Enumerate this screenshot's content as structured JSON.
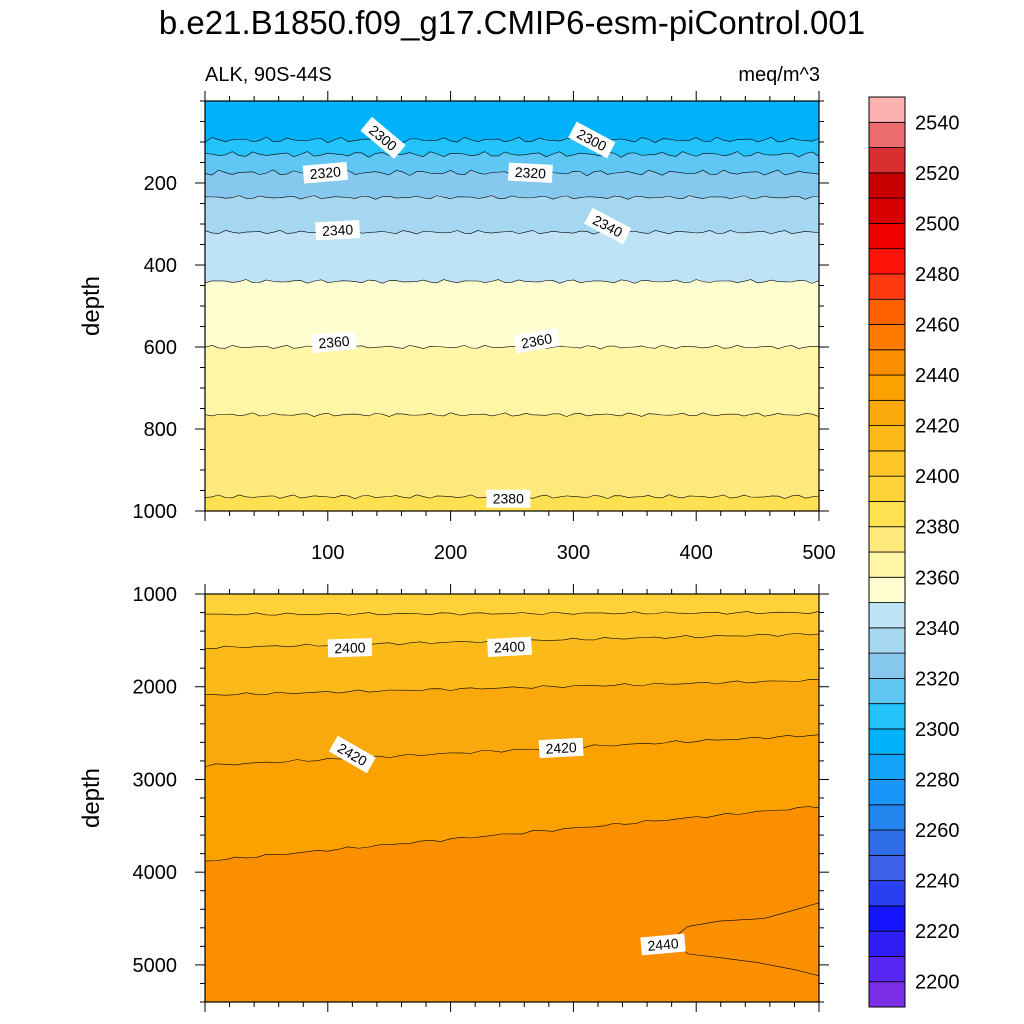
{
  "figure": {
    "title": "b.e21.B1850.f09_g17.CMIP6-esm-piControl.001",
    "left_string": "ALK, 90S-44S",
    "right_string": "meq/m^3"
  },
  "chart_data": [
    {
      "type": "contour",
      "panel": "upper",
      "xlabel": "",
      "ylabel": "depth",
      "xlim": [
        0,
        500
      ],
      "ylim": [
        1000,
        0
      ],
      "y_reversed": true,
      "x_ticks": [
        100,
        200,
        300,
        400,
        500
      ],
      "x_tick_labels": [
        "100",
        "200",
        "300",
        "400",
        "500"
      ],
      "y_ticks": [
        200,
        400,
        600,
        800,
        1000
      ],
      "y_tick_labels": [
        "200",
        "400",
        "600",
        "800",
        "1000"
      ],
      "bands": [
        {
          "from": 0,
          "to": 95,
          "level": 2290
        },
        {
          "from": 95,
          "to": 130,
          "level": 2300
        },
        {
          "from": 130,
          "to": 175,
          "level": 2310
        },
        {
          "from": 175,
          "to": 235,
          "level": 2320
        },
        {
          "from": 235,
          "to": 320,
          "level": 2330
        },
        {
          "from": 320,
          "to": 440,
          "level": 2340
        },
        {
          "from": 440,
          "to": 600,
          "level": 2350
        },
        {
          "from": 600,
          "to": 765,
          "level": 2360
        },
        {
          "from": 765,
          "to": 965,
          "level": 2370
        },
        {
          "from": 965,
          "to": 1000,
          "level": 2380
        }
      ],
      "contour_labels": [
        {
          "text": "2300",
          "x": 145,
          "y": 90,
          "angle": 40
        },
        {
          "text": "2300",
          "x": 315,
          "y": 95,
          "angle": 28
        },
        {
          "text": "2320",
          "x": 98,
          "y": 175,
          "angle": -5
        },
        {
          "text": "2320",
          "x": 265,
          "y": 175,
          "angle": 3
        },
        {
          "text": "2340",
          "x": 108,
          "y": 315,
          "angle": -3
        },
        {
          "text": "2340",
          "x": 328,
          "y": 305,
          "angle": 28
        },
        {
          "text": "2360",
          "x": 105,
          "y": 588,
          "angle": -5
        },
        {
          "text": "2360",
          "x": 270,
          "y": 585,
          "angle": -10
        },
        {
          "text": "2380",
          "x": 247,
          "y": 970,
          "angle": 0
        }
      ]
    },
    {
      "type": "contour",
      "panel": "lower",
      "xlabel": "",
      "ylabel": "depth",
      "xlim": [
        0,
        500
      ],
      "ylim": [
        5400,
        1000
      ],
      "y_reversed": true,
      "y_ticks": [
        1000,
        2000,
        3000,
        4000,
        5000
      ],
      "y_tick_labels": [
        "1000",
        "2000",
        "3000",
        "4000",
        "5000"
      ],
      "isolines": [
        {
          "level": 2390,
          "y_left": 1220,
          "y_right": 1200
        },
        {
          "level": 2400,
          "y_left": 1580,
          "y_right": 1430
        },
        {
          "level": 2410,
          "y_left": 2090,
          "y_right": 1930
        },
        {
          "level": 2420,
          "y_left": 2850,
          "y_right": 2520
        },
        {
          "level": 2430,
          "y_left": 3880,
          "y_right": 3290
        }
      ],
      "contour_labels": [
        {
          "text": "2400",
          "x": 118,
          "y": 1580,
          "angle": -2
        },
        {
          "text": "2400",
          "x": 248,
          "y": 1570,
          "angle": -3
        },
        {
          "text": "2420",
          "x": 120,
          "y": 2730,
          "angle": 30
        },
        {
          "text": "2420",
          "x": 290,
          "y": 2660,
          "angle": -3
        },
        {
          "text": "2440",
          "x": 373,
          "y": 4780,
          "angle": -5
        }
      ]
    }
  ],
  "colorbar": {
    "label_levels": [
      2200,
      2220,
      2240,
      2260,
      2280,
      2300,
      2320,
      2340,
      2360,
      2380,
      2400,
      2420,
      2440,
      2460,
      2480,
      2500,
      2520,
      2540
    ],
    "label_texts": [
      "2200",
      "2220",
      "2240",
      "2260",
      "2280",
      "2300",
      "2320",
      "2340",
      "2360",
      "2380",
      "2400",
      "2420",
      "2440",
      "2460",
      "2480",
      "2500",
      "2520",
      "2540"
    ],
    "colors": [
      "#7b30e8",
      "#5a26f4",
      "#2f1ef5",
      "#1414ff",
      "#2a3ff2",
      "#3e60e6",
      "#2f6ee8",
      "#2484ee",
      "#1a96f8",
      "#11a4f8",
      "#00b2f9",
      "#24c3fb",
      "#60c7f4",
      "#86c8ee",
      "#a5d7f0",
      "#bde3f5",
      "#fffed0",
      "#fff6a6",
      "#ffe97d",
      "#ffe050",
      "#ffd23a",
      "#ffc62a",
      "#fbb91a",
      "#f9a90b",
      "#fba200",
      "#fa8f00",
      "#fc7b00",
      "#fd6100",
      "#ff3a10",
      "#ff1208",
      "#f20000",
      "#d80000",
      "#c90000",
      "#d83030",
      "#ea6c6c",
      "#fdb2b2"
    ]
  },
  "style": {
    "contour_line": "#000000",
    "label_box": "#ffffff"
  }
}
